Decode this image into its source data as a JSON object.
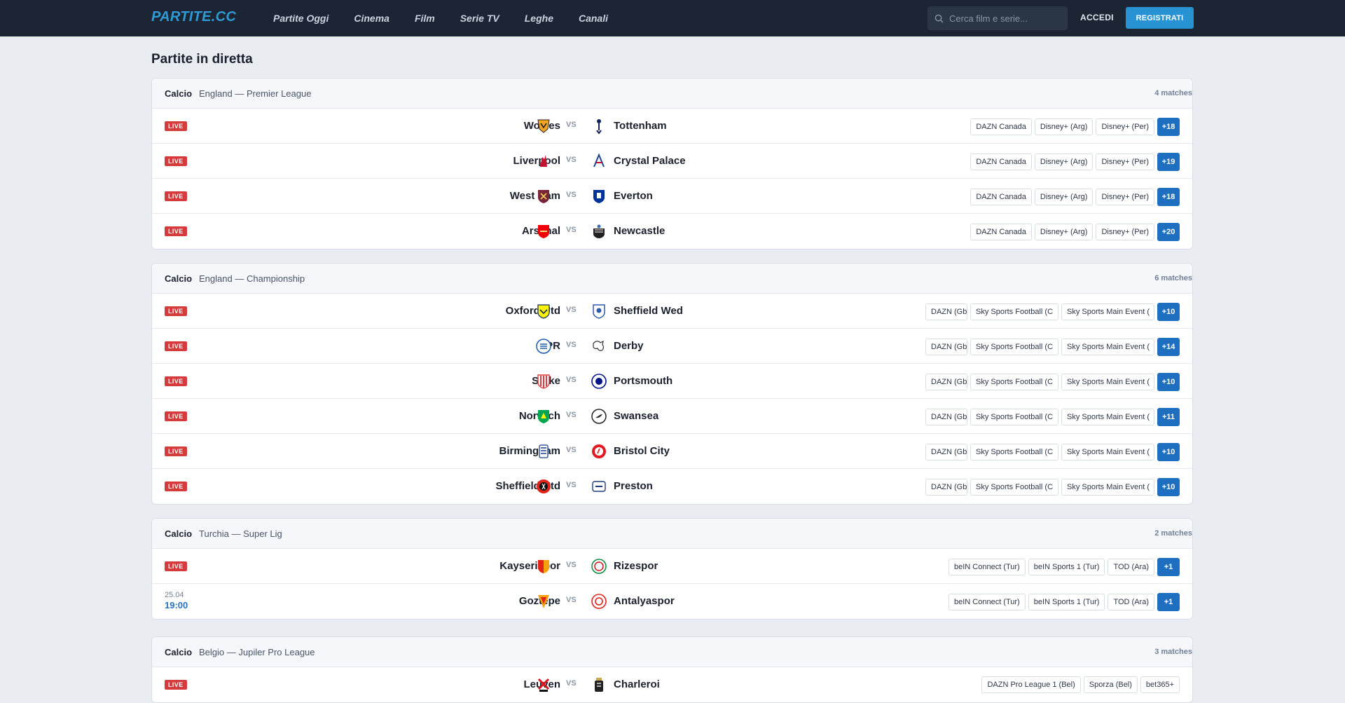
{
  "nav": {
    "logo": "PARTITE.CC",
    "links": [
      "Partite Oggi",
      "Cinema",
      "Film",
      "Serie TV",
      "Leghe",
      "Canali"
    ],
    "search_placeholder": "Cerca film e serie...",
    "login": "ACCEDI",
    "register": "REGISTRATI"
  },
  "page_title": "Partite in diretta",
  "colors": {
    "live": "#d63b3b",
    "accent": "#2793d3",
    "more": "#1f6fc0",
    "nav_bg": "#1c2533"
  },
  "leagues": [
    {
      "sport": "Calcio",
      "name": "England — Premier League",
      "count": "4 matches",
      "matches": [
        {
          "status": "LIVE",
          "home": "Wolves",
          "away": "Tottenham",
          "channels": [
            "DAZN Canada",
            "Disney+ (Arg)",
            "Disney+ (Per)"
          ],
          "more": "+18"
        },
        {
          "status": "LIVE",
          "home": "Liverpool",
          "away": "Crystal Palace",
          "channels": [
            "DAZN Canada",
            "Disney+ (Arg)",
            "Disney+ (Per)"
          ],
          "more": "+19"
        },
        {
          "status": "LIVE",
          "home": "West Ham",
          "away": "Everton",
          "channels": [
            "DAZN Canada",
            "Disney+ (Arg)",
            "Disney+ (Per)"
          ],
          "more": "+18"
        },
        {
          "status": "LIVE",
          "home": "Arsenal",
          "away": "Newcastle",
          "channels": [
            "DAZN Canada",
            "Disney+ (Arg)",
            "Disney+ (Per)"
          ],
          "more": "+20"
        }
      ]
    },
    {
      "sport": "Calcio",
      "name": "England — Championship",
      "count": "6 matches",
      "matches": [
        {
          "status": "LIVE",
          "home": "Oxford Utd",
          "away": "Sheffield Wed",
          "channels": [
            "DAZN (Gb",
            "Sky Sports Football (C",
            "Sky Sports Main Event ("
          ],
          "more": "+10"
        },
        {
          "status": "LIVE",
          "home": "QPR",
          "away": "Derby",
          "channels": [
            "DAZN (Gb",
            "Sky Sports Football (C",
            "Sky Sports Main Event ("
          ],
          "more": "+14"
        },
        {
          "status": "LIVE",
          "home": "Stoke",
          "away": "Portsmouth",
          "channels": [
            "DAZN (Gb",
            "Sky Sports Football (C",
            "Sky Sports Main Event ("
          ],
          "more": "+10"
        },
        {
          "status": "LIVE",
          "home": "Norwich",
          "away": "Swansea",
          "channels": [
            "DAZN (Gb",
            "Sky Sports Football (C",
            "Sky Sports Main Event ("
          ],
          "more": "+11"
        },
        {
          "status": "LIVE",
          "home": "Birmingham",
          "away": "Bristol City",
          "channels": [
            "DAZN (Gb",
            "Sky Sports Football (C",
            "Sky Sports Main Event ("
          ],
          "more": "+10"
        },
        {
          "status": "LIVE",
          "home": "Sheffield Utd",
          "away": "Preston",
          "channels": [
            "DAZN (Gb",
            "Sky Sports Football (C",
            "Sky Sports Main Event ("
          ],
          "more": "+10"
        }
      ]
    },
    {
      "sport": "Calcio",
      "name": "Turchia — Super Lig",
      "count": "2 matches",
      "matches": [
        {
          "status": "LIVE",
          "home": "Kayserispor",
          "away": "Rizespor",
          "channels": [
            "beIN Connect (Tur)",
            "beIN Sports 1 (Tur)",
            "TOD (Ara)"
          ],
          "more": "+1"
        },
        {
          "status": "",
          "date": "25.04",
          "time": "19:00",
          "home": "Goztepe",
          "away": "Antalyaspor",
          "channels": [
            "beIN Connect (Tur)",
            "beIN Sports 1 (Tur)",
            "TOD (Ara)"
          ],
          "more": "+1"
        }
      ]
    },
    {
      "sport": "Calcio",
      "name": "Belgio — Jupiler Pro League",
      "count": "3 matches",
      "matches": [
        {
          "status": "LIVE",
          "home": "Leuven",
          "away": "Charleroi",
          "channels": [
            "DAZN Pro League 1 (Bel)",
            "Sporza (Bel)",
            "bet365+"
          ],
          "more": ""
        }
      ]
    }
  ]
}
